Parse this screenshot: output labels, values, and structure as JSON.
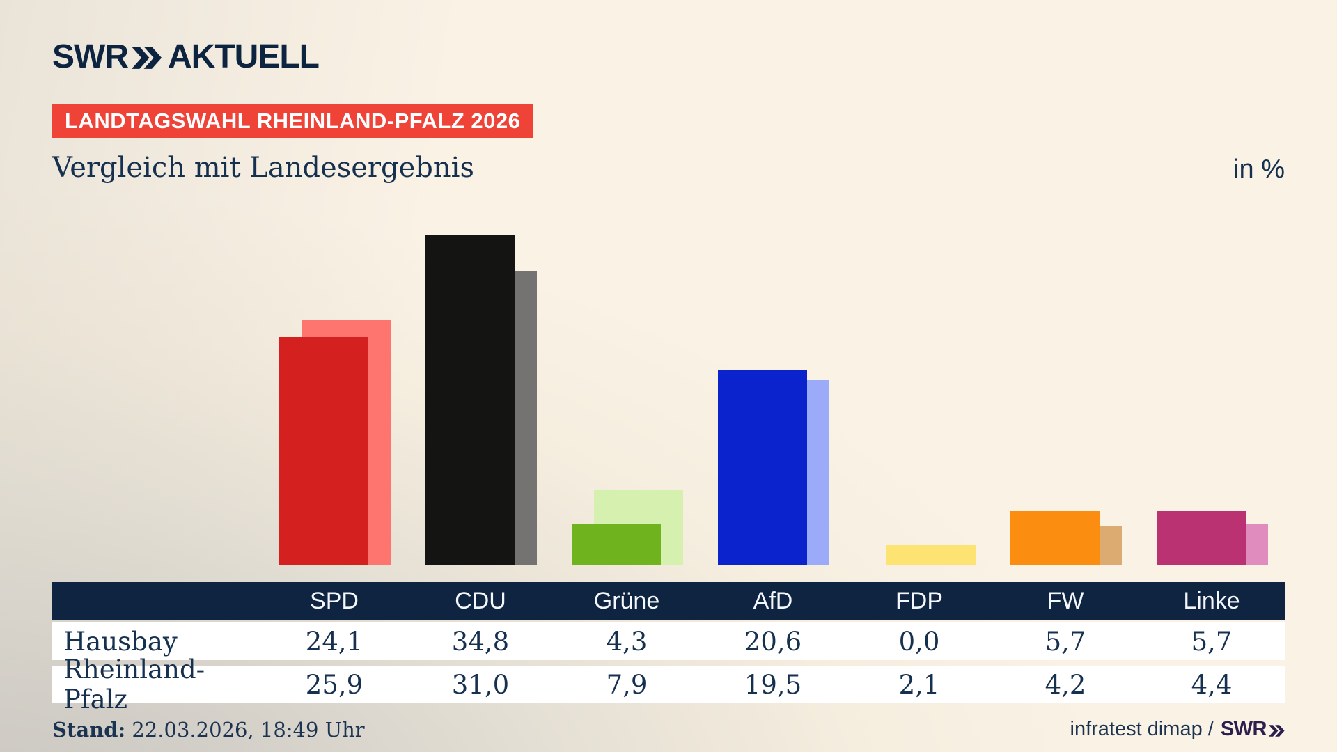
{
  "brand": {
    "swr": "SWR",
    "aktuell": "AKTUELL"
  },
  "badge": "LANDTAGSWAHL RHEINLAND-PFALZ 2026",
  "subtitle": "Vergleich mit Landesergebnis",
  "unit_label": "in %",
  "chart_data": {
    "type": "bar",
    "title": "Vergleich mit Landesergebnis",
    "unit": "in %",
    "categories": [
      "SPD",
      "CDU",
      "Grüne",
      "AfD",
      "FDP",
      "FW",
      "Linke"
    ],
    "series": [
      {
        "name": "Hausbay",
        "values": [
          24.1,
          34.8,
          4.3,
          20.6,
          0.0,
          5.7,
          5.7
        ]
      },
      {
        "name": "Rheinland-Pfalz",
        "values": [
          25.9,
          31.0,
          7.9,
          19.5,
          2.1,
          4.2,
          4.4
        ]
      }
    ],
    "colors": {
      "main": [
        "#d42120",
        "#141413",
        "#6fb41e",
        "#0b23cc",
        null,
        "#fb8d10",
        "#bb3273"
      ],
      "secondary": [
        "#fe746e",
        "#747371",
        "#d5f0af",
        "#9caafa",
        "#fde372",
        "#dcab72",
        "#e18cbe"
      ]
    },
    "ylim": [
      0,
      36
    ],
    "grid": false,
    "legend": "table-rows"
  },
  "table": {
    "header": [
      "",
      "SPD",
      "CDU",
      "Grüne",
      "AfD",
      "FDP",
      "FW",
      "Linke"
    ],
    "rows": [
      {
        "label": "Hausbay",
        "values": [
          "24,1",
          "34,8",
          "4,3",
          "20,6",
          "0,0",
          "5,7",
          "5,7"
        ]
      },
      {
        "label": "Rheinland-Pfalz",
        "values": [
          "25,9",
          "31,0",
          "7,9",
          "19,5",
          "2,1",
          "4,2",
          "4,4"
        ]
      }
    ]
  },
  "footer": {
    "stand_label": "Stand:",
    "stand_value": " 22.03.2026, 18:49 Uhr",
    "source": "infratest dimap /",
    "source_brand": "SWR"
  }
}
